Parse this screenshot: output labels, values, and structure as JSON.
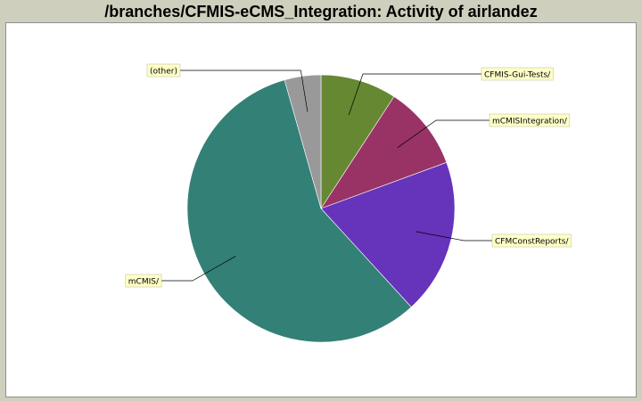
{
  "header": {
    "title": "/branches/CFMIS-eCMS_Integration: Activity of airlandez"
  },
  "colors": {
    "page_background": "#cfcfbd",
    "plot_background": "#ffffff",
    "label_background": "#ffffc8"
  },
  "chart_data": {
    "type": "pie",
    "title": "/branches/CFMIS-eCMS_Integration: Activity of airlandez",
    "start_angle_deg": 90,
    "direction": "clockwise",
    "slices": [
      {
        "label": "CFMIS-Gui-Tests/",
        "value": 9.2,
        "color": "#668833"
      },
      {
        "label": "mCMISIntegration/",
        "value": 10.2,
        "color": "#993366"
      },
      {
        "label": "CFMConstReports/",
        "value": 18.8,
        "color": "#6633bb"
      },
      {
        "label": "mCMIS/",
        "value": 57.4,
        "color": "#338077"
      },
      {
        "label": "(other)",
        "value": 4.4,
        "color": "#999999"
      }
    ]
  }
}
